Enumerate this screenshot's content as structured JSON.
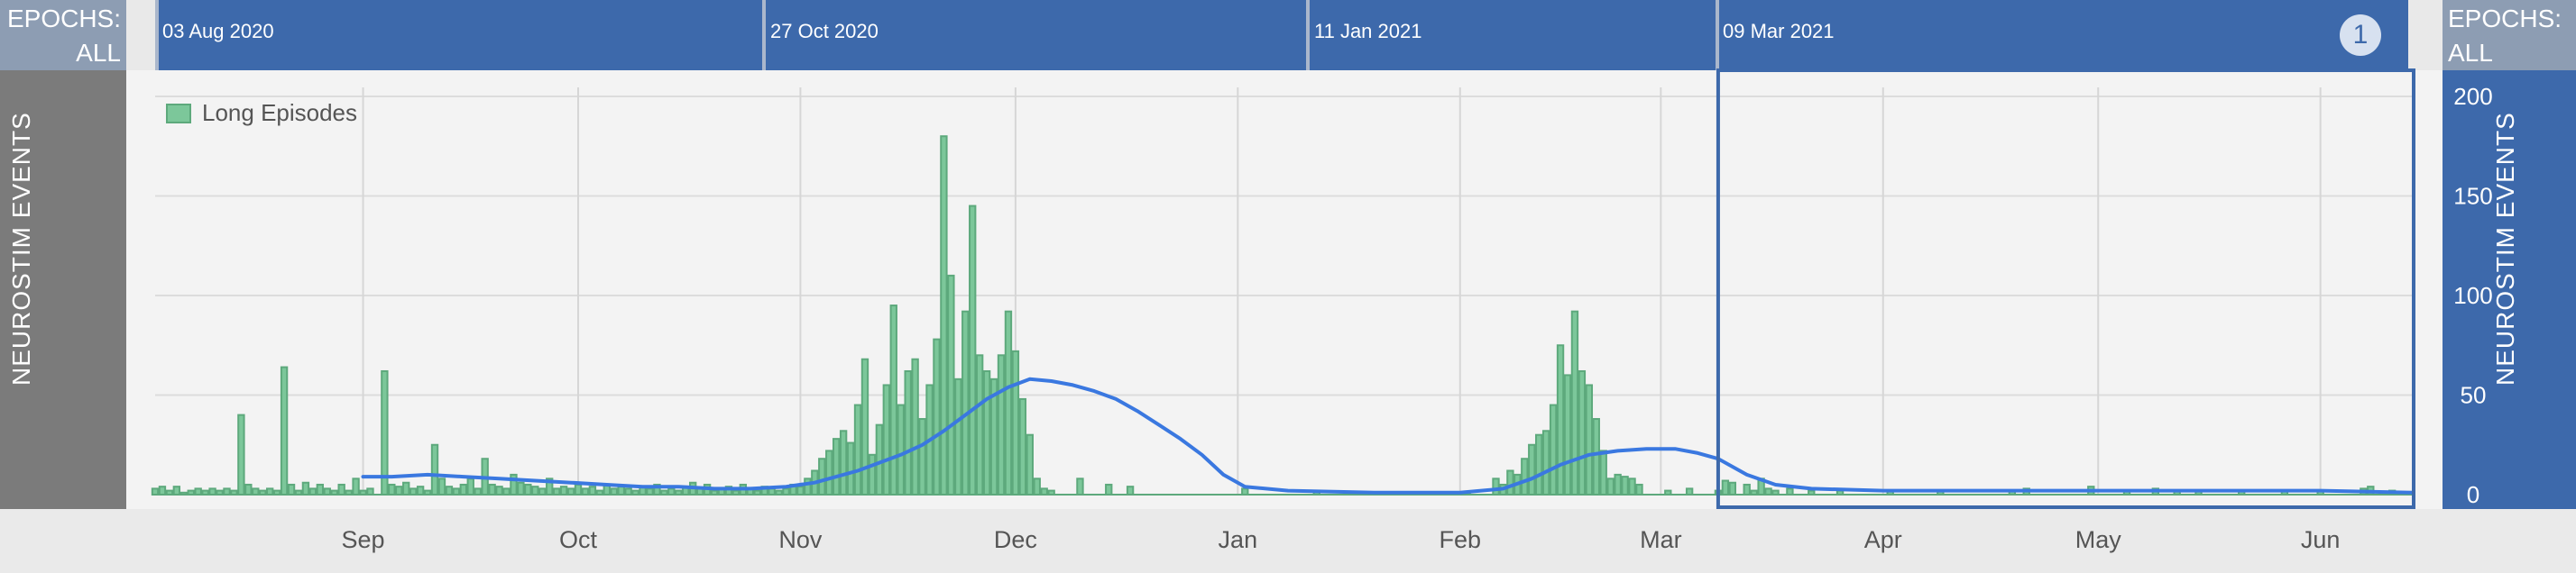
{
  "epochs": {
    "label_line1": "EPOCHS:",
    "label_line2": "ALL",
    "dates": [
      "03 Aug 2020",
      "27 Oct 2020",
      "11 Jan 2021",
      "09 Mar 2021"
    ],
    "badge": "1"
  },
  "axis": {
    "left_label": "NEUROSTIM EVENTS",
    "right_label": "NEUROSTIM EVENTS"
  },
  "colors": {
    "bar_fill": "#7cc79a",
    "bar_stroke": "#5da97c",
    "line": "#3a78e0",
    "selection": "#3d69ab"
  },
  "chart_data": {
    "type": "bar",
    "legend": [
      "Long Episodes"
    ],
    "legend_position": "top-left",
    "grid": true,
    "ylim": [
      0,
      200
    ],
    "y_ticks": [
      0,
      50,
      100,
      150,
      200
    ],
    "x_ticks": [
      "Sep",
      "Oct",
      "Nov",
      "Dec",
      "Jan",
      "Feb",
      "Mar",
      "Apr",
      "May",
      "Jun"
    ],
    "x_range": [
      "2020-08-03",
      "2021-06-14"
    ],
    "selection_range": [
      "2021-03-09",
      "2021-06-14"
    ],
    "series": [
      {
        "name": "Long Episodes",
        "type": "bar",
        "points": [
          [
            "2020-08-03",
            3
          ],
          [
            "2020-08-04",
            4
          ],
          [
            "2020-08-05",
            2
          ],
          [
            "2020-08-06",
            4
          ],
          [
            "2020-08-07",
            1
          ],
          [
            "2020-08-08",
            2
          ],
          [
            "2020-08-09",
            3
          ],
          [
            "2020-08-10",
            2
          ],
          [
            "2020-08-11",
            3
          ],
          [
            "2020-08-12",
            2
          ],
          [
            "2020-08-13",
            3
          ],
          [
            "2020-08-14",
            2
          ],
          [
            "2020-08-15",
            40
          ],
          [
            "2020-08-16",
            5
          ],
          [
            "2020-08-17",
            3
          ],
          [
            "2020-08-18",
            2
          ],
          [
            "2020-08-19",
            3
          ],
          [
            "2020-08-20",
            2
          ],
          [
            "2020-08-21",
            64
          ],
          [
            "2020-08-22",
            5
          ],
          [
            "2020-08-23",
            2
          ],
          [
            "2020-08-24",
            6
          ],
          [
            "2020-08-25",
            3
          ],
          [
            "2020-08-26",
            5
          ],
          [
            "2020-08-27",
            3
          ],
          [
            "2020-08-28",
            2
          ],
          [
            "2020-08-29",
            5
          ],
          [
            "2020-08-30",
            2
          ],
          [
            "2020-08-31",
            8
          ],
          [
            "2020-09-01",
            2
          ],
          [
            "2020-09-02",
            3
          ],
          [
            "2020-09-04",
            62
          ],
          [
            "2020-09-05",
            5
          ],
          [
            "2020-09-06",
            4
          ],
          [
            "2020-09-07",
            6
          ],
          [
            "2020-09-08",
            3
          ],
          [
            "2020-09-09",
            4
          ],
          [
            "2020-09-10",
            2
          ],
          [
            "2020-09-11",
            25
          ],
          [
            "2020-09-12",
            8
          ],
          [
            "2020-09-13",
            4
          ],
          [
            "2020-09-14",
            3
          ],
          [
            "2020-09-15",
            5
          ],
          [
            "2020-09-16",
            8
          ],
          [
            "2020-09-17",
            3
          ],
          [
            "2020-09-18",
            18
          ],
          [
            "2020-09-19",
            5
          ],
          [
            "2020-09-20",
            4
          ],
          [
            "2020-09-21",
            3
          ],
          [
            "2020-09-22",
            10
          ],
          [
            "2020-09-23",
            6
          ],
          [
            "2020-09-24",
            5
          ],
          [
            "2020-09-25",
            4
          ],
          [
            "2020-09-26",
            3
          ],
          [
            "2020-09-27",
            8
          ],
          [
            "2020-09-28",
            3
          ],
          [
            "2020-09-29",
            4
          ],
          [
            "2020-09-30",
            3
          ],
          [
            "2020-10-01",
            5
          ],
          [
            "2020-10-02",
            3
          ],
          [
            "2020-10-03",
            4
          ],
          [
            "2020-10-04",
            2
          ],
          [
            "2020-10-05",
            5
          ],
          [
            "2020-10-06",
            3
          ],
          [
            "2020-10-07",
            4
          ],
          [
            "2020-10-08",
            3
          ],
          [
            "2020-10-09",
            2
          ],
          [
            "2020-10-10",
            4
          ],
          [
            "2020-10-11",
            3
          ],
          [
            "2020-10-12",
            5
          ],
          [
            "2020-10-13",
            2
          ],
          [
            "2020-10-14",
            3
          ],
          [
            "2020-10-15",
            2
          ],
          [
            "2020-10-16",
            4
          ],
          [
            "2020-10-17",
            6
          ],
          [
            "2020-10-18",
            3
          ],
          [
            "2020-10-19",
            5
          ],
          [
            "2020-10-20",
            2
          ],
          [
            "2020-10-21",
            3
          ],
          [
            "2020-10-22",
            4
          ],
          [
            "2020-10-23",
            2
          ],
          [
            "2020-10-24",
            5
          ],
          [
            "2020-10-25",
            3
          ],
          [
            "2020-10-26",
            2
          ],
          [
            "2020-10-27",
            4
          ],
          [
            "2020-10-28",
            3
          ],
          [
            "2020-10-29",
            2
          ],
          [
            "2020-10-30",
            3
          ],
          [
            "2020-10-31",
            5
          ],
          [
            "2020-11-01",
            4
          ],
          [
            "2020-11-02",
            8
          ],
          [
            "2020-11-03",
            12
          ],
          [
            "2020-11-04",
            18
          ],
          [
            "2020-11-05",
            22
          ],
          [
            "2020-11-06",
            28
          ],
          [
            "2020-11-07",
            32
          ],
          [
            "2020-11-08",
            26
          ],
          [
            "2020-11-09",
            45
          ],
          [
            "2020-11-10",
            68
          ],
          [
            "2020-11-11",
            20
          ],
          [
            "2020-11-12",
            35
          ],
          [
            "2020-11-13",
            55
          ],
          [
            "2020-11-14",
            95
          ],
          [
            "2020-11-15",
            45
          ],
          [
            "2020-11-16",
            62
          ],
          [
            "2020-11-17",
            68
          ],
          [
            "2020-11-18",
            38
          ],
          [
            "2020-11-19",
            55
          ],
          [
            "2020-11-20",
            78
          ],
          [
            "2020-11-21",
            180
          ],
          [
            "2020-11-22",
            110
          ],
          [
            "2020-11-23",
            58
          ],
          [
            "2020-11-24",
            92
          ],
          [
            "2020-11-25",
            145
          ],
          [
            "2020-11-26",
            70
          ],
          [
            "2020-11-27",
            62
          ],
          [
            "2020-11-28",
            58
          ],
          [
            "2020-11-29",
            70
          ],
          [
            "2020-11-30",
            92
          ],
          [
            "2020-12-01",
            72
          ],
          [
            "2020-12-02",
            48
          ],
          [
            "2020-12-03",
            30
          ],
          [
            "2020-12-04",
            8
          ],
          [
            "2020-12-05",
            3
          ],
          [
            "2020-12-06",
            2
          ],
          [
            "2020-12-10",
            8
          ],
          [
            "2020-12-14",
            5
          ],
          [
            "2020-12-17",
            4
          ],
          [
            "2021-01-02",
            3
          ],
          [
            "2021-01-12",
            2
          ],
          [
            "2021-02-02",
            1
          ],
          [
            "2021-02-06",
            8
          ],
          [
            "2021-02-07",
            5
          ],
          [
            "2021-02-08",
            12
          ],
          [
            "2021-02-09",
            10
          ],
          [
            "2021-02-10",
            18
          ],
          [
            "2021-02-11",
            25
          ],
          [
            "2021-02-12",
            30
          ],
          [
            "2021-02-13",
            32
          ],
          [
            "2021-02-14",
            45
          ],
          [
            "2021-02-15",
            75
          ],
          [
            "2021-02-16",
            60
          ],
          [
            "2021-02-17",
            92
          ],
          [
            "2021-02-18",
            62
          ],
          [
            "2021-02-19",
            55
          ],
          [
            "2021-02-20",
            38
          ],
          [
            "2021-02-21",
            22
          ],
          [
            "2021-02-22",
            8
          ],
          [
            "2021-02-23",
            10
          ],
          [
            "2021-02-24",
            9
          ],
          [
            "2021-02-25",
            8
          ],
          [
            "2021-02-26",
            5
          ],
          [
            "2021-03-02",
            2
          ],
          [
            "2021-03-05",
            3
          ],
          [
            "2021-03-09",
            2
          ],
          [
            "2021-03-10",
            7
          ],
          [
            "2021-03-11",
            6
          ],
          [
            "2021-03-13",
            5
          ],
          [
            "2021-03-14",
            2
          ],
          [
            "2021-03-15",
            8
          ],
          [
            "2021-03-16",
            3
          ],
          [
            "2021-03-17",
            2
          ],
          [
            "2021-03-19",
            3
          ],
          [
            "2021-03-22",
            2
          ],
          [
            "2021-03-26",
            2
          ],
          [
            "2021-04-02",
            2
          ],
          [
            "2021-04-09",
            2
          ],
          [
            "2021-04-19",
            2
          ],
          [
            "2021-04-21",
            3
          ],
          [
            "2021-04-30",
            4
          ],
          [
            "2021-05-05",
            2
          ],
          [
            "2021-05-09",
            3
          ],
          [
            "2021-05-12",
            2
          ],
          [
            "2021-05-15",
            2
          ],
          [
            "2021-05-21",
            2
          ],
          [
            "2021-05-27",
            2
          ],
          [
            "2021-06-01",
            2
          ],
          [
            "2021-06-07",
            3
          ],
          [
            "2021-06-08",
            4
          ],
          [
            "2021-06-11",
            2
          ]
        ]
      },
      {
        "name": "",
        "type": "line",
        "points": [
          [
            "2020-09-01",
            9
          ],
          [
            "2020-09-05",
            9
          ],
          [
            "2020-09-10",
            10
          ],
          [
            "2020-09-15",
            9
          ],
          [
            "2020-09-20",
            8
          ],
          [
            "2020-09-25",
            7
          ],
          [
            "2020-09-30",
            6
          ],
          [
            "2020-10-05",
            5
          ],
          [
            "2020-10-10",
            4
          ],
          [
            "2020-10-15",
            4
          ],
          [
            "2020-10-20",
            3
          ],
          [
            "2020-10-25",
            3
          ],
          [
            "2020-10-30",
            4
          ],
          [
            "2020-11-03",
            6
          ],
          [
            "2020-11-06",
            9
          ],
          [
            "2020-11-09",
            12
          ],
          [
            "2020-11-12",
            16
          ],
          [
            "2020-11-15",
            20
          ],
          [
            "2020-11-18",
            25
          ],
          [
            "2020-11-21",
            32
          ],
          [
            "2020-11-24",
            40
          ],
          [
            "2020-11-27",
            48
          ],
          [
            "2020-11-30",
            54
          ],
          [
            "2020-12-03",
            58
          ],
          [
            "2020-12-06",
            57
          ],
          [
            "2020-12-09",
            55
          ],
          [
            "2020-12-12",
            52
          ],
          [
            "2020-12-15",
            48
          ],
          [
            "2020-12-18",
            42
          ],
          [
            "2020-12-21",
            35
          ],
          [
            "2020-12-24",
            28
          ],
          [
            "2020-12-27",
            20
          ],
          [
            "2020-12-30",
            10
          ],
          [
            "2021-01-02",
            4
          ],
          [
            "2021-01-08",
            2
          ],
          [
            "2021-01-20",
            1
          ],
          [
            "2021-02-01",
            1
          ],
          [
            "2021-02-07",
            3
          ],
          [
            "2021-02-11",
            8
          ],
          [
            "2021-02-15",
            15
          ],
          [
            "2021-02-19",
            20
          ],
          [
            "2021-02-23",
            22
          ],
          [
            "2021-02-27",
            23
          ],
          [
            "2021-03-03",
            23
          ],
          [
            "2021-03-06",
            21
          ],
          [
            "2021-03-09",
            18
          ],
          [
            "2021-03-13",
            10
          ],
          [
            "2021-03-17",
            5
          ],
          [
            "2021-03-22",
            3
          ],
          [
            "2021-04-01",
            2
          ],
          [
            "2021-04-20",
            2
          ],
          [
            "2021-05-10",
            2
          ],
          [
            "2021-06-01",
            2
          ],
          [
            "2021-06-14",
            1
          ]
        ]
      }
    ]
  }
}
